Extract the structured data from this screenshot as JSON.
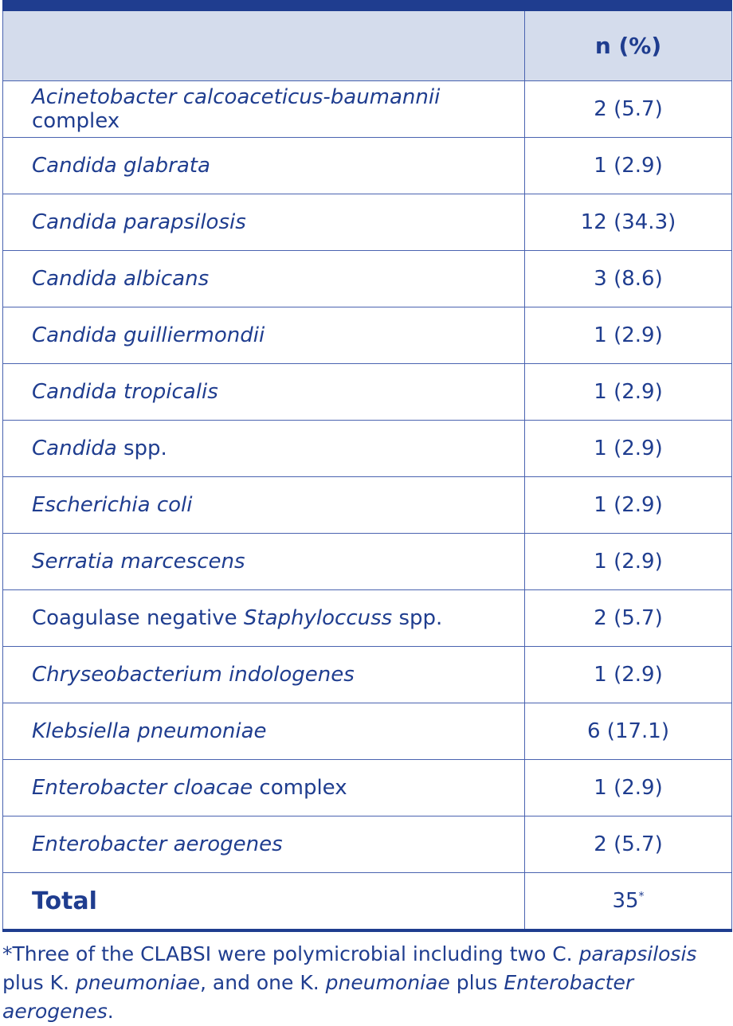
{
  "table": {
    "header": {
      "col1": "",
      "col2": "n (%)"
    },
    "rows": [
      {
        "parts": [
          {
            "t": "Acinetobacter calcoaceticus-baumannii",
            "i": true
          },
          {
            "t": " complex",
            "i": false
          }
        ],
        "value": "2 (5.7)"
      },
      {
        "parts": [
          {
            "t": "Candida glabrata",
            "i": true
          }
        ],
        "value": "1 (2.9)"
      },
      {
        "parts": [
          {
            "t": "Candida parapsilosis",
            "i": true
          }
        ],
        "value": "12 (34.3)"
      },
      {
        "parts": [
          {
            "t": "Candida albicans",
            "i": true
          }
        ],
        "value": "3 (8.6)"
      },
      {
        "parts": [
          {
            "t": "Candida guilliermondii",
            "i": true
          }
        ],
        "value": "1 (2.9)"
      },
      {
        "parts": [
          {
            "t": "Candida tropicalis",
            "i": true
          }
        ],
        "value": "1 (2.9)"
      },
      {
        "parts": [
          {
            "t": "Candida",
            "i": true
          },
          {
            "t": " spp.",
            "i": false
          }
        ],
        "value": "1 (2.9)"
      },
      {
        "parts": [
          {
            "t": "Escherichia coli",
            "i": true
          }
        ],
        "value": "1 (2.9)"
      },
      {
        "parts": [
          {
            "t": "Serratia marcescens",
            "i": true
          }
        ],
        "value": "1 (2.9)"
      },
      {
        "parts": [
          {
            "t": "Coagulase negative ",
            "i": false
          },
          {
            "t": "Staphyloccuss",
            "i": true
          },
          {
            "t": " spp.",
            "i": false
          }
        ],
        "value": "2 (5.7)"
      },
      {
        "parts": [
          {
            "t": "Chryseobacterium indologenes",
            "i": true
          }
        ],
        "value": "1 (2.9)"
      },
      {
        "parts": [
          {
            "t": "Klebsiella pneumoniae",
            "i": true
          }
        ],
        "value": "6 (17.1)"
      },
      {
        "parts": [
          {
            "t": "Enterobacter cloacae",
            "i": true
          },
          {
            "t": " complex",
            "i": false
          }
        ],
        "value": "1 (2.9)"
      },
      {
        "parts": [
          {
            "t": "Enterobacter aerogenes",
            "i": true
          }
        ],
        "value": "2 (5.7)"
      }
    ],
    "total": {
      "label": "Total",
      "value": "35",
      "mark": "*"
    }
  },
  "footnote": {
    "parts": [
      {
        "t": "*Three of the CLABSI were polymicrobial including two C. ",
        "i": false
      },
      {
        "t": "parapsilosis",
        "i": true
      },
      {
        "t": " plus K. ",
        "i": false
      },
      {
        "t": "pneumoniae",
        "i": true
      },
      {
        "t": ", and one K. ",
        "i": false
      },
      {
        "t": "pneumoniae",
        "i": true
      },
      {
        "t": " plus ",
        "i": false
      },
      {
        "t": "Enterobacter aerogenes",
        "i": true
      },
      {
        "t": ".",
        "i": false
      }
    ]
  }
}
